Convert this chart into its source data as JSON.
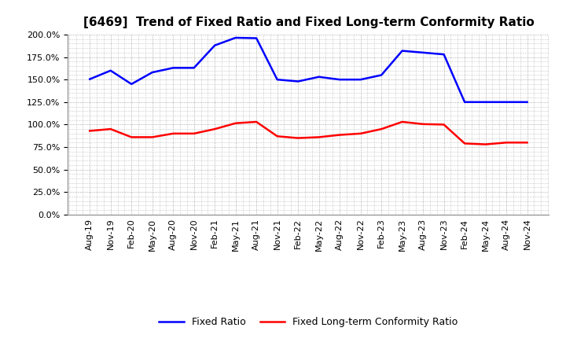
{
  "title": "[6469]  Trend of Fixed Ratio and Fixed Long-term Conformity Ratio",
  "x_labels": [
    "Aug-19",
    "Nov-19",
    "Feb-20",
    "May-20",
    "Aug-20",
    "Nov-20",
    "Feb-21",
    "May-21",
    "Aug-21",
    "Nov-21",
    "Feb-22",
    "May-22",
    "Aug-22",
    "Nov-22",
    "Feb-23",
    "May-23",
    "Aug-23",
    "Nov-23",
    "Feb-24",
    "May-24",
    "Aug-24",
    "Nov-24"
  ],
  "fixed_ratio": [
    150.5,
    160.0,
    145.0,
    158.0,
    163.0,
    163.0,
    188.0,
    196.5,
    196.0,
    150.0,
    148.0,
    153.0,
    150.0,
    150.0,
    155.0,
    182.0,
    180.0,
    178.0,
    125.0,
    125.0,
    125.0,
    125.0
  ],
  "fixed_lt_ratio": [
    93.0,
    95.0,
    86.0,
    86.0,
    90.0,
    90.0,
    95.0,
    101.5,
    103.0,
    87.0,
    85.0,
    86.0,
    88.5,
    90.0,
    95.0,
    103.0,
    100.5,
    100.0,
    79.0,
    78.0,
    80.0,
    80.0
  ],
  "ylim": [
    0,
    200
  ],
  "yticks": [
    0,
    25,
    50,
    75,
    100,
    125,
    150,
    175,
    200
  ],
  "fixed_ratio_color": "#0000FF",
  "fixed_lt_ratio_color": "#FF0000",
  "background_color": "#FFFFFF",
  "grid_color": "#999999",
  "legend_fixed_ratio": "Fixed Ratio",
  "legend_fixed_lt_ratio": "Fixed Long-term Conformity Ratio",
  "line_width": 1.8,
  "title_fontsize": 11,
  "tick_fontsize": 8,
  "legend_fontsize": 9
}
